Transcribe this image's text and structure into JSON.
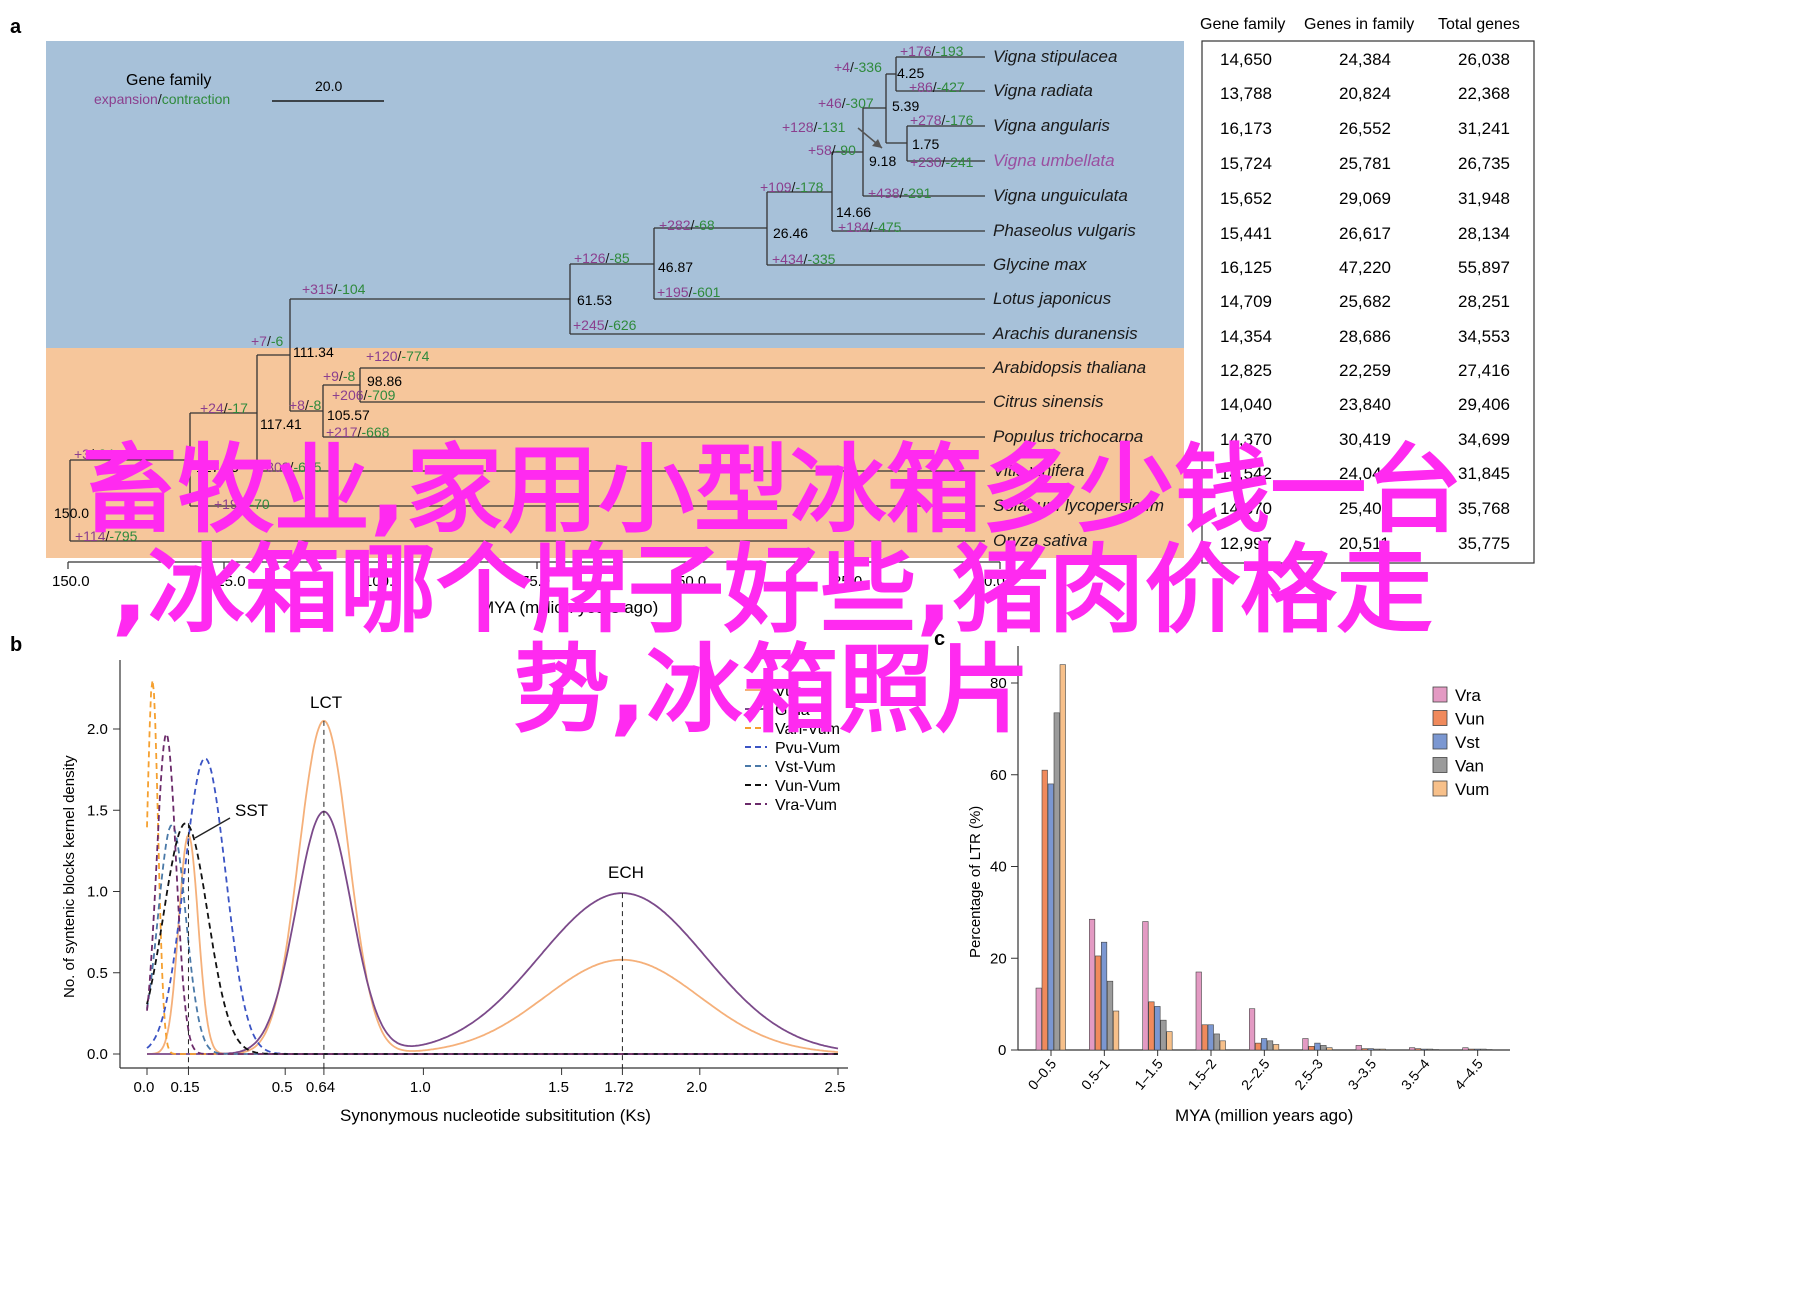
{
  "panel_a": {
    "panel_letter": "a",
    "key_title": "Gene family",
    "key_expansion": "expansion",
    "key_slash": "/",
    "key_contraction": "contraction",
    "scale_label": "20.0",
    "axis_label": "MYA (million years ago)",
    "axis_ticks": [
      "150.0",
      "125.0",
      "100.0",
      "75.0",
      "50.0",
      "25.0",
      "0.0"
    ],
    "colors": {
      "legume_bg": "#a7c1d9",
      "other_bg": "#f6c69b",
      "expansion": "#8b3f8e",
      "contraction": "#2f8a3c",
      "highlight_species": "#9a4fa0"
    },
    "species": [
      "Vigna stipulacea",
      "Vigna radiata",
      "Vigna angularis",
      "Vigna umbellata",
      "Vigna unguiculata",
      "Phaseolus vulgaris",
      "Glycine max",
      "Lotus japonicus",
      "Arachis duranensis",
      "Arabidopsis thaliana",
      "Citrus sinensis",
      "Populus trichocarpa",
      "Vitis vinifera",
      "Solanum lycopersicum",
      "Oryza sativa"
    ],
    "node_ages": [
      "4.25",
      "5.39",
      "1.75",
      "9.18",
      "14.66",
      "26.46",
      "46.87",
      "61.53",
      "111.34",
      "98.86",
      "105.57",
      "117.41",
      "127.65",
      "150.0"
    ],
    "branch_labels": [
      {
        "exp": "+176",
        "con": "193"
      },
      {
        "exp": "+4",
        "con": "336"
      },
      {
        "exp": "+86",
        "con": "427"
      },
      {
        "exp": "+46",
        "con": "307"
      },
      {
        "exp": "+278",
        "con": "176"
      },
      {
        "exp": "+128",
        "con": "131"
      },
      {
        "exp": "+58",
        "con": "90"
      },
      {
        "exp": "+230",
        "con": "241"
      },
      {
        "exp": "+109",
        "con": "178"
      },
      {
        "exp": "+438",
        "con": "291"
      },
      {
        "exp": "+282",
        "con": "68"
      },
      {
        "exp": "+184",
        "con": "475"
      },
      {
        "exp": "+126",
        "con": "85"
      },
      {
        "exp": "+434",
        "con": "335"
      },
      {
        "exp": "+315",
        "con": "104"
      },
      {
        "exp": "+195",
        "con": "601"
      },
      {
        "exp": "+245",
        "con": "626"
      },
      {
        "exp": "+7",
        "con": "6"
      },
      {
        "exp": "+120",
        "con": "774"
      },
      {
        "exp": "+9",
        "con": "8"
      },
      {
        "exp": "+24",
        "con": "17"
      },
      {
        "exp": "+206",
        "con": "709"
      },
      {
        "exp": "+8",
        "con": "8"
      },
      {
        "exp": "+217",
        "con": "668"
      },
      {
        "exp": "+308",
        "con": "615"
      },
      {
        "exp": "+197",
        "con": "70"
      },
      {
        "exp": "+114",
        "con": "795"
      },
      {
        "exp": "+3",
        "con": "24"
      }
    ]
  },
  "table": {
    "headers": [
      "Gene family",
      "Genes in family",
      "Total genes"
    ],
    "rows": [
      [
        "14,650",
        "24,384",
        "26,038"
      ],
      [
        "13,788",
        "20,824",
        "22,368"
      ],
      [
        "16,173",
        "26,552",
        "31,241"
      ],
      [
        "15,724",
        "25,781",
        "26,735"
      ],
      [
        "15,652",
        "29,069",
        "31,948"
      ],
      [
        "15,441",
        "26,617",
        "28,134"
      ],
      [
        "16,125",
        "47,220",
        "55,897"
      ],
      [
        "14,709",
        "25,682",
        "28,251"
      ],
      [
        "14,354",
        "28,686",
        "34,553"
      ],
      [
        "12,825",
        "22,259",
        "27,416"
      ],
      [
        "14,040",
        "23,840",
        "29,406"
      ],
      [
        "14,370",
        "30,419",
        "34,699"
      ],
      [
        "14,542",
        "24,044",
        "31,845"
      ],
      [
        "14,870",
        "25,401",
        "35,768"
      ],
      [
        "12,997",
        "20,511",
        "35,775"
      ]
    ]
  },
  "panel_b": {
    "panel_letter": "b",
    "ylabel": "No. of syntenic blocks kernel density",
    "xlabel": "Synonymous nucleotide subsititution (Ks)",
    "xticks": [
      "0.0",
      "0.15",
      "0.5",
      "0.64",
      "1.0",
      "1.5",
      "1.72",
      "2.0",
      "2.5"
    ],
    "yticks": [
      "0.0",
      "0.5",
      "1.0",
      "1.5",
      "2.0"
    ],
    "peaks": {
      "sst": "SST",
      "lct": "LCT",
      "ech": "ECH"
    },
    "legend": [
      "Vun",
      "Gma",
      "Van-Vum",
      "Pvu-Vum",
      "Vst-Vum",
      "Vun-Vum",
      "Vra-Vum"
    ]
  },
  "panel_c": {
    "panel_letter": "c",
    "ylabel": "Percentage of LTR (%)",
    "xlabel": "MYA (million years ago)",
    "legend": [
      "Vra",
      "Vun",
      "Vst",
      "Van",
      "Vum"
    ]
  },
  "overlay": {
    "line1": "畜牧业,家用小型冰箱多少钱一台",
    "line2": ",冰箱哪个牌子好些,猪肉价格走",
    "line3": "势,冰箱照片"
  },
  "chart_data": [
    {
      "type": "line",
      "xlabel": "Synonymous nucleotide subsititution (Ks)",
      "ylabel": "No. of syntenic blocks kernel density",
      "xlim": [
        0,
        2.5
      ],
      "ylim": [
        0,
        2.3
      ],
      "series": [
        {
          "name": "Vun",
          "color": "#f5b07a",
          "style": "solid",
          "peaks": [
            {
              "mu": 0.15,
              "sigma": 0.035,
              "amp": 1.35
            },
            {
              "mu": 0.64,
              "sigma": 0.09,
              "amp": 2.05
            },
            {
              "mu": 1.72,
              "sigma": 0.28,
              "amp": 0.58
            }
          ]
        },
        {
          "name": "Gma",
          "color": "#7b4a8a",
          "style": "solid",
          "peaks": [
            {
              "mu": 0.64,
              "sigma": 0.1,
              "amp": 1.49
            },
            {
              "mu": 1.72,
              "sigma": 0.3,
              "amp": 0.99
            }
          ]
        },
        {
          "name": "Van-Vum",
          "color": "#f5a030",
          "style": "dashed",
          "peaks": [
            {
              "mu": 0.02,
              "sigma": 0.02,
              "amp": 2.3
            }
          ]
        },
        {
          "name": "Pvu-Vum",
          "color": "#3b54c4",
          "style": "dashed",
          "peaks": [
            {
              "mu": 0.21,
              "sigma": 0.075,
              "amp": 1.82
            }
          ]
        },
        {
          "name": "Vst-Vum",
          "color": "#4a79a8",
          "style": "dashed",
          "peaks": [
            {
              "mu": 0.09,
              "sigma": 0.05,
              "amp": 1.41
            }
          ]
        },
        {
          "name": "Vun-Vum",
          "color": "#111111",
          "style": "dashed",
          "peaks": [
            {
              "mu": 0.14,
              "sigma": 0.08,
              "amp": 1.42
            }
          ]
        },
        {
          "name": "Vra-Vum",
          "color": "#6b2a6a",
          "style": "dashed",
          "peaks": [
            {
              "mu": 0.07,
              "sigma": 0.035,
              "amp": 1.97
            }
          ]
        }
      ],
      "annotations": [
        {
          "text": "SST",
          "x": 0.15,
          "y": 1.42
        },
        {
          "text": "LCT",
          "x": 0.64,
          "y": 2.05
        },
        {
          "text": "ECH",
          "x": 1.72,
          "y": 0.99
        }
      ]
    },
    {
      "type": "bar",
      "xlabel": "MYA (million years ago)",
      "ylabel": "Percentage of LTR (%)",
      "ylim": [
        0,
        85
      ],
      "categories": [
        "0–0.5",
        "0.5–1",
        "1–1.5",
        "1.5–2",
        "2–2.5",
        "2.5–3",
        "3–3.5",
        "3.5–4",
        "4–4.5"
      ],
      "series": [
        {
          "name": "Vra",
          "color": "#e39ac3",
          "values": [
            13.5,
            28.5,
            28,
            17,
            9,
            2.5,
            1,
            0.5,
            0.5
          ]
        },
        {
          "name": "Vun",
          "color": "#f08a5c",
          "values": [
            61,
            20.5,
            10.5,
            5.5,
            1.5,
            0.8,
            0.3,
            0.3,
            0.2
          ]
        },
        {
          "name": "Vst",
          "color": "#7b97d1",
          "values": [
            58,
            23.5,
            9.5,
            5.5,
            2.5,
            1.5,
            0.3,
            0.2,
            0.2
          ]
        },
        {
          "name": "Van",
          "color": "#9b9b9b",
          "values": [
            73.5,
            15,
            6.5,
            3.5,
            2,
            1,
            0.2,
            0.2,
            0.2
          ]
        },
        {
          "name": "Vum",
          "color": "#f7c08a",
          "values": [
            84,
            8.5,
            4,
            2,
            1.2,
            0.5,
            0.2,
            0.1,
            0.1
          ]
        }
      ]
    }
  ]
}
